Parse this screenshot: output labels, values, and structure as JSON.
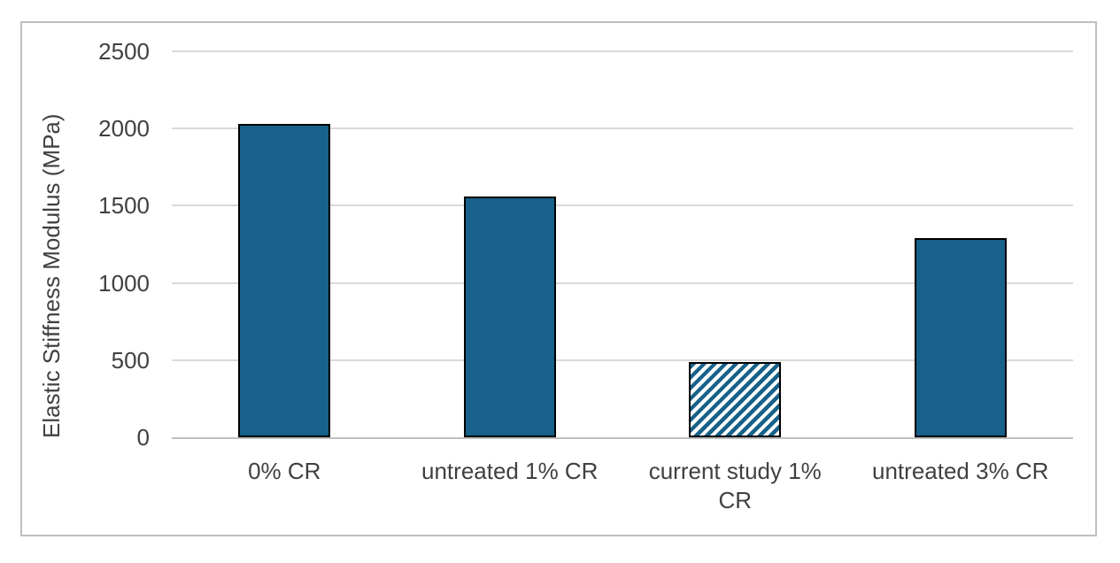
{
  "chart_data": {
    "type": "bar",
    "title": "",
    "xlabel": "",
    "ylabel": "Elastic Stiffness Modulus (MPa)",
    "categories": [
      "0% CR",
      "untreated 1% CR",
      "current study 1% CR",
      "untreated 3% CR"
    ],
    "values": [
      2030,
      1560,
      490,
      1290
    ],
    "bar_styles": [
      "solid",
      "solid",
      "hatched",
      "solid"
    ],
    "hatch_description": "wide upward diagonal teal stripes on white for the 'current study 1% CR' bar",
    "yticks": [
      0,
      500,
      1000,
      1500,
      2000,
      2500
    ],
    "ylim": [
      0,
      2500
    ],
    "grid": true,
    "legend_position": "none",
    "colors": {
      "bar_fill": "#17618A",
      "bar_border": "#000000",
      "hatch_background": "#FFFFFF",
      "gridline": "#D9D9D9",
      "axis_line": "#BFBFBF",
      "chart_border": "#BFBFBF",
      "text": "#404040"
    }
  }
}
